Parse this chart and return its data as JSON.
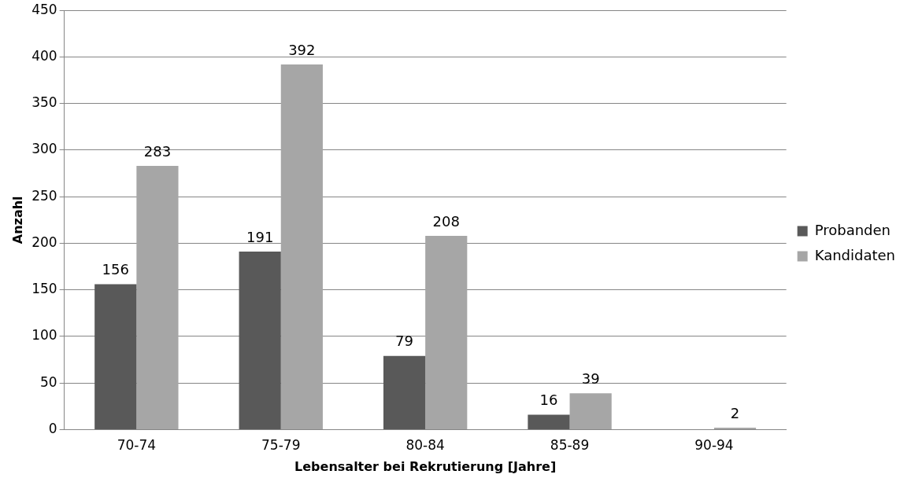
{
  "chart_data": {
    "type": "bar",
    "xlabel": "Lebensalter bei Rekrutierung [Jahre]",
    "ylabel": "Anzahl",
    "categories": [
      "70-74",
      "75-79",
      "80-84",
      "85-89",
      "90-94"
    ],
    "series": [
      {
        "name": "Probanden",
        "color": "#595959",
        "values": [
          156,
          191,
          79,
          16,
          0
        ],
        "value_labels": [
          "156",
          "191",
          "79",
          "16",
          null
        ]
      },
      {
        "name": "Kandidaten",
        "color": "#a6a6a6",
        "values": [
          283,
          392,
          208,
          39,
          2
        ],
        "value_labels": [
          "283",
          "392",
          "208",
          "39",
          "2"
        ]
      }
    ],
    "ylim": [
      0,
      450
    ],
    "yticks": [
      0,
      50,
      100,
      150,
      200,
      250,
      300,
      350,
      400,
      450
    ],
    "grid": "y",
    "legend": "right"
  }
}
